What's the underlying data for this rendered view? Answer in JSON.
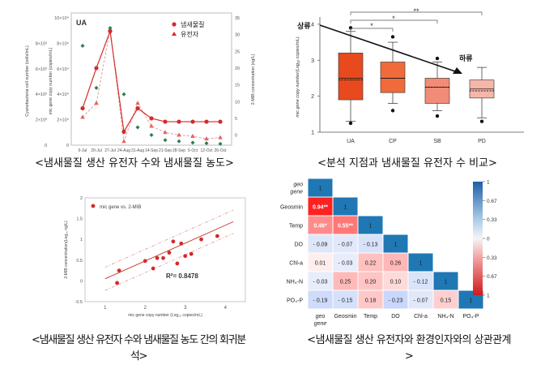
{
  "captions": {
    "c1": "<냄새물질 생산 유전자 수와 냄새물질 농도>",
    "c2": "<분석 지점과 냄새물질 유전자 수 비교>",
    "c3_l1": "<냄새물질 생산 유전자 수와 냄새물질 농도 간의 회귀분",
    "c3_l2": "석>",
    "c4_l1": "<냄새물질 생산 유전자와 환경인자와의 상관관계",
    "c4_l2": ">"
  },
  "chart_data": [
    {
      "type": "line",
      "panel_label": "UA",
      "y_outer_label": "Cyanobacteria cell number (cells/mL)",
      "y_outer_ticks": [
        "0",
        "2×10³",
        "4×10³",
        "6×10³",
        "8×10³"
      ],
      "ylabel": "mic gene copy number (copies/mL)",
      "ylim": [
        0,
        100000
      ],
      "yticks": [
        "0",
        "2×10⁴",
        "4×10⁴",
        "6×10⁴",
        "8×10⁴",
        "10×10⁴"
      ],
      "y2label": "2-MIB concentration (ng/L)",
      "y2lim": [
        -3,
        35
      ],
      "y2ticks": [
        0,
        5,
        10,
        15,
        20,
        25,
        30,
        35
      ],
      "x_ticks": [
        "6-Jul",
        "20-Jul",
        "27-Jul",
        "24-Aug",
        "31-Aug",
        "14-Sep",
        "21-Sep",
        "28-Sep",
        "5-Oct",
        "12-Oct",
        "26-Oct"
      ],
      "legend": [
        "냄새물질",
        "유전자"
      ],
      "legend_position": "top-right",
      "series": [
        {
          "name": "냄새물질",
          "axis": "right",
          "values": [
            8,
            20,
            31,
            1,
            8,
            5,
            4,
            4,
            4,
            4,
            4
          ]
        },
        {
          "name": "유전자",
          "axis": "left",
          "values": [
            22000,
            33000,
            91000,
            3000,
            33000,
            15000,
            10000,
            8000,
            7000,
            5000,
            6000
          ]
        }
      ],
      "green_points": [
        78000,
        45000,
        92000,
        40000,
        14000,
        8000,
        4000,
        3000,
        2000,
        1500,
        1000
      ]
    },
    {
      "type": "box",
      "ylabel": "mic gene copy number(Log₁₀ copies/mL)",
      "ylim": [
        1,
        4.2
      ],
      "yticks": [
        1,
        2,
        3,
        4
      ],
      "categories": [
        "UA",
        "CP",
        "SB",
        "PD"
      ],
      "colors": [
        "#e8491d",
        "#f16a3a",
        "#f28b77",
        "#f6b6a8"
      ],
      "boxes": [
        {
          "min": 1.3,
          "q1": 1.9,
          "median": 2.5,
          "mean": 2.45,
          "q3": 3.2,
          "max": 3.8,
          "outliers": [
            1.25,
            3.9
          ]
        },
        {
          "min": 1.8,
          "q1": 2.1,
          "median": 2.5,
          "mean": 2.5,
          "q3": 2.95,
          "max": 3.5,
          "outliers": [
            1.6,
            3.65
          ]
        },
        {
          "min": 1.6,
          "q1": 1.8,
          "median": 2.25,
          "mean": 2.25,
          "q3": 2.5,
          "max": 2.95,
          "outliers": [
            1.45,
            3.05
          ]
        },
        {
          "min": 1.4,
          "q1": 1.95,
          "median": 2.2,
          "mean": 2.15,
          "q3": 2.45,
          "max": 2.8,
          "outliers": [
            1.3
          ]
        }
      ],
      "annotations": {
        "upstream": "상류",
        "downstream": "하류",
        "sig1": "*",
        "sig2": "*",
        "sig3": "**"
      }
    },
    {
      "type": "scatter",
      "legend": [
        "mic gene vs. 2-MIB"
      ],
      "xlabel": "mic gene copy number (Log₁₀ copies/mL)",
      "ylabel": "2-MIB concentration(Log₁₀ ng/L)",
      "xlim": [
        0.5,
        4.5
      ],
      "ylim": [
        -0.5,
        2
      ],
      "xticks": [
        1,
        2,
        3,
        4
      ],
      "yticks": [
        -0.5,
        0,
        0.5,
        1,
        1.5,
        2
      ],
      "r2": "R²= 0.8478",
      "fit": {
        "slope": 0.43,
        "intercept": -0.38
      },
      "points": [
        [
          1.3,
          -0.05
        ],
        [
          1.35,
          0.25
        ],
        [
          2.0,
          0.48
        ],
        [
          2.2,
          0.3
        ],
        [
          2.3,
          0.55
        ],
        [
          2.45,
          0.55
        ],
        [
          2.6,
          0.68
        ],
        [
          2.7,
          0.95
        ],
        [
          2.8,
          0.42
        ],
        [
          2.9,
          0.9
        ],
        [
          3.0,
          0.6
        ],
        [
          3.15,
          0.65
        ],
        [
          3.4,
          1.0
        ],
        [
          3.8,
          1.08
        ]
      ]
    },
    {
      "type": "heatmap",
      "labels": [
        "geo gene",
        "Geosmin",
        "Temp",
        "DO",
        "Chl-a",
        "NH₄-N",
        "PO₄-P"
      ],
      "cells": [
        [
          "1"
        ],
        [
          "0.94**",
          "1"
        ],
        [
          "0.46*",
          "0.55**",
          "1"
        ],
        [
          "- 0.09",
          "- 0.07",
          "- 0.13",
          "1"
        ],
        [
          "0.01",
          "- 0.03",
          "0.22",
          "0.26",
          "1"
        ],
        [
          "- 0.03",
          "0.25",
          "0.20",
          "0.10",
          "- 0.12",
          "1"
        ],
        [
          "- 0.19",
          "- 0.15",
          "0.18",
          "- 0.23",
          "- 0.07",
          "0.15",
          "1"
        ]
      ],
      "values": [
        [
          1
        ],
        [
          0.94,
          1
        ],
        [
          0.46,
          0.55,
          1
        ],
        [
          -0.09,
          -0.07,
          -0.13,
          1
        ],
        [
          0.01,
          -0.03,
          0.22,
          0.26,
          1
        ],
        [
          -0.03,
          0.25,
          0.2,
          0.1,
          -0.12,
          1
        ],
        [
          -0.19,
          -0.15,
          0.18,
          -0.23,
          -0.07,
          0.15,
          1
        ]
      ],
      "colorbar_ticks": [
        "1",
        "0.67",
        "0.33",
        "0",
        "0.33",
        "0.67",
        "1"
      ]
    }
  ]
}
